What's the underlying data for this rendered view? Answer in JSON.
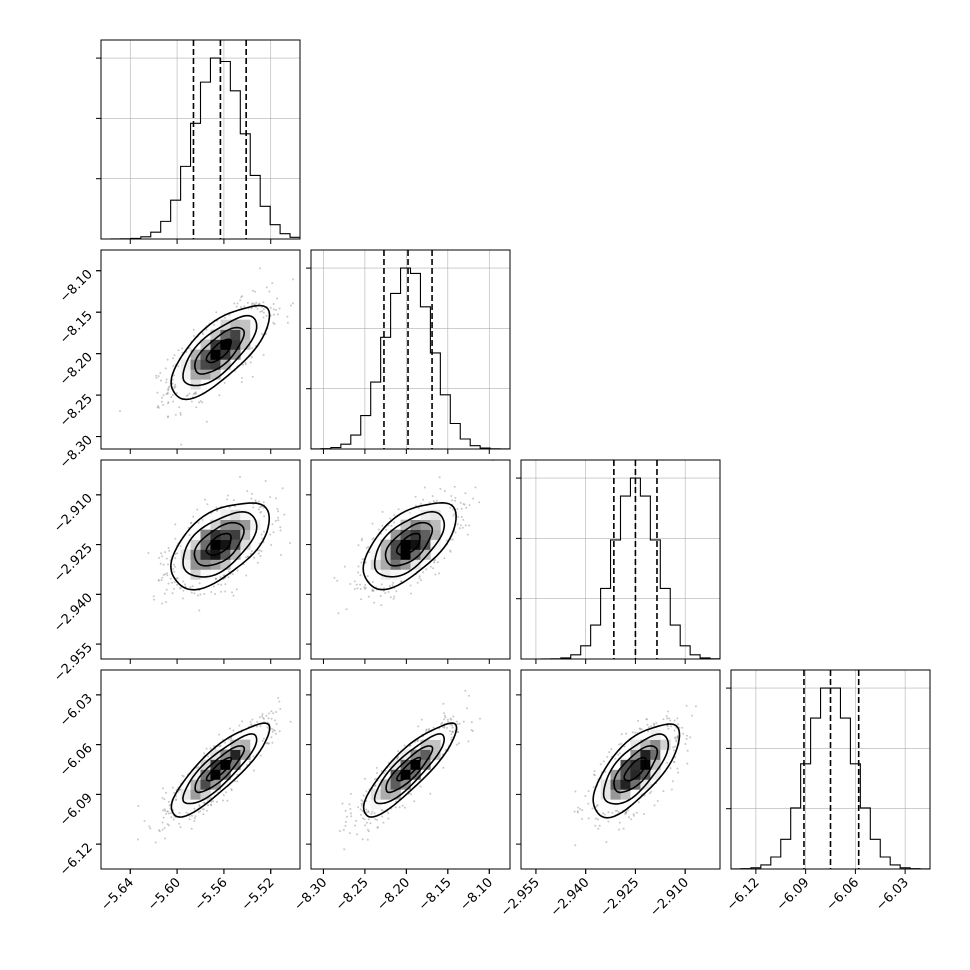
{
  "chart_data": {
    "type": "corner",
    "grid": true,
    "quantiles": [
      0.16,
      0.5,
      0.84
    ],
    "parameters": [
      {
        "range": [
          -5.665,
          -5.495
        ],
        "ticks": [
          -5.64,
          -5.6,
          -5.56,
          -5.52
        ],
        "tick_labels": [
          "−5.64",
          "−5.60",
          "−5.56",
          "−5.52"
        ],
        "mean": -5.564,
        "std": 0.021,
        "quantile_values": [
          -5.586,
          -5.563,
          -5.541
        ]
      },
      {
        "range": [
          -8.315,
          -8.075
        ],
        "ticks": [
          -8.3,
          -8.25,
          -8.2,
          -8.15,
          -8.1
        ],
        "tick_labels": [
          "−8.30",
          "−8.25",
          "−8.20",
          "−8.15",
          "−8.10"
        ],
        "mean": -8.197,
        "std": 0.028,
        "quantile_values": [
          -8.227,
          -8.198,
          -8.169
        ]
      },
      {
        "range": [
          -2.9595,
          -2.8995
        ],
        "ticks": [
          -2.955,
          -2.94,
          -2.925,
          -2.91
        ],
        "tick_labels": [
          "−2.955",
          "−2.940",
          "−2.925",
          "−2.910"
        ],
        "mean": -2.925,
        "std": 0.0065,
        "quantile_values": [
          -2.9315,
          -2.925,
          -2.9185
        ]
      },
      {
        "range": [
          -6.135,
          -6.015
        ],
        "ticks": [
          -6.12,
          -6.09,
          -6.06,
          -6.03
        ],
        "tick_labels": [
          "−6.12",
          "−6.09",
          "−6.06",
          "−6.03"
        ],
        "mean": -6.075,
        "std": 0.014,
        "quantile_values": [
          -6.091,
          -6.075,
          -6.058
        ]
      }
    ],
    "correlations": [
      [
        1.0,
        0.72,
        0.55,
        0.85
      ],
      [
        0.72,
        1.0,
        0.6,
        0.86
      ],
      [
        0.55,
        0.6,
        1.0,
        0.7
      ],
      [
        0.85,
        0.86,
        0.7,
        1.0
      ]
    ],
    "contour_levels_sigma": [
      0.5,
      1.0,
      1.5,
      2.0
    ],
    "colors": {
      "line": "#000000",
      "scatter": "#9a9a9a",
      "grid": "#b0b0b0"
    }
  }
}
